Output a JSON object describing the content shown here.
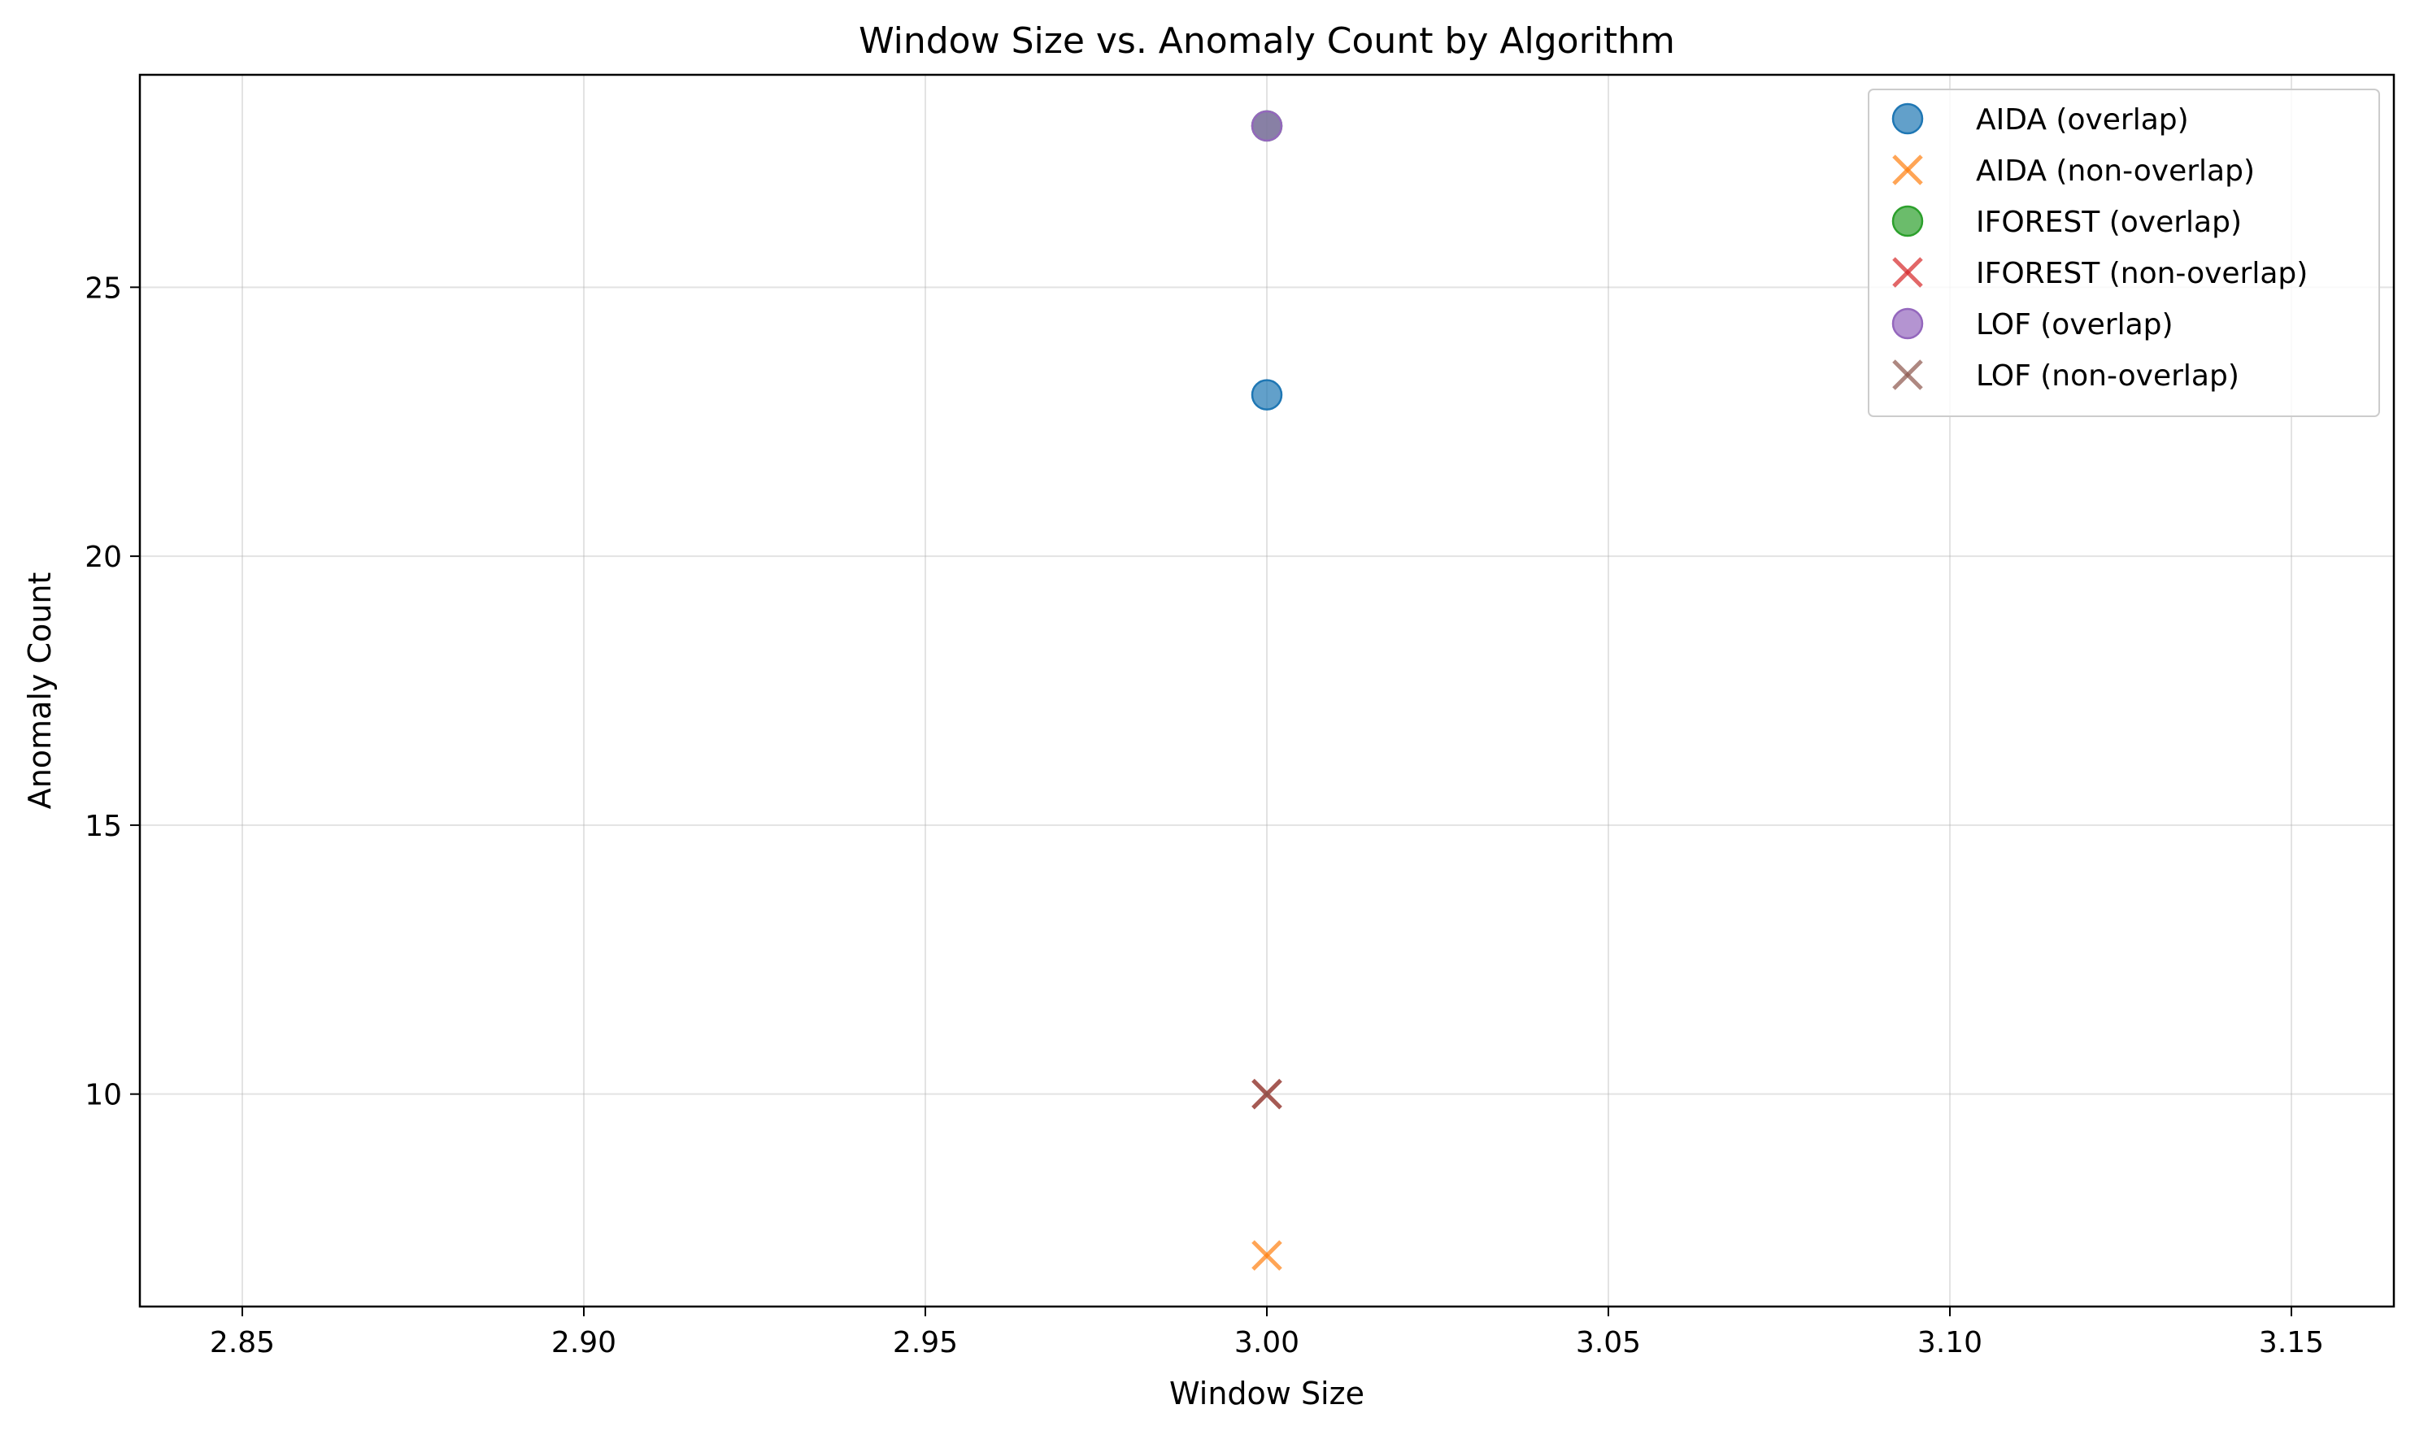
{
  "chart_data": {
    "type": "scatter",
    "title": "Window Size vs. Anomaly Count by Algorithm",
    "xlabel": "Window Size",
    "ylabel": "Anomaly Count",
    "xlim": [
      2.835,
      3.165
    ],
    "ylim": [
      6.05,
      28.95
    ],
    "xticks": [
      2.85,
      2.9,
      2.95,
      3.0,
      3.05,
      3.1,
      3.15
    ],
    "xtick_labels": [
      "2.85",
      "2.90",
      "2.95",
      "3.00",
      "3.05",
      "3.10",
      "3.15"
    ],
    "yticks": [
      10,
      15,
      20,
      25
    ],
    "ytick_labels": [
      "10",
      "15",
      "20",
      "25"
    ],
    "grid": true,
    "legend_position": "top-right",
    "series": [
      {
        "name": "AIDA (overlap)",
        "marker": "circle",
        "color": "#1f77b4",
        "points": [
          {
            "x": 3.0,
            "y": 23
          }
        ]
      },
      {
        "name": "AIDA (non-overlap)",
        "marker": "x",
        "color": "#ff7f0e",
        "points": [
          {
            "x": 3.0,
            "y": 7
          }
        ]
      },
      {
        "name": "IFOREST (overlap)",
        "marker": "circle",
        "color": "#2ca02c",
        "points": [
          {
            "x": 3.0,
            "y": 28
          }
        ]
      },
      {
        "name": "IFOREST (non-overlap)",
        "marker": "x",
        "color": "#d62728",
        "points": [
          {
            "x": 3.0,
            "y": 10
          }
        ]
      },
      {
        "name": "LOF (overlap)",
        "marker": "circle",
        "color": "#9467bd",
        "points": [
          {
            "x": 3.0,
            "y": 28
          }
        ]
      },
      {
        "name": "LOF (non-overlap)",
        "marker": "x",
        "color": "#8c564b",
        "points": [
          {
            "x": 3.0,
            "y": 10
          }
        ]
      }
    ]
  }
}
